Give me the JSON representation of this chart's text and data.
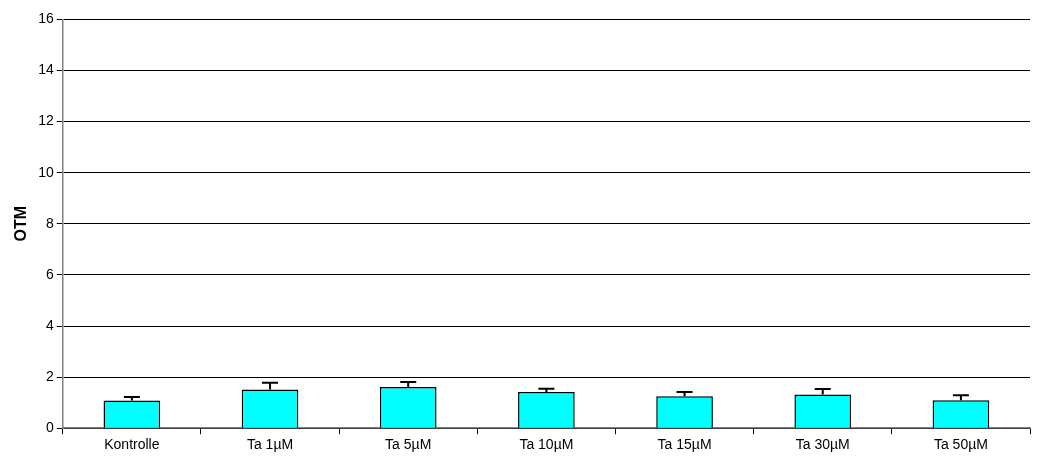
{
  "chart_data": {
    "type": "bar",
    "ylabel": "OTM",
    "categories": [
      "Kontrolle",
      "Ta 1µM",
      "Ta 5µM",
      "Ta 10µM",
      "Ta 15µM",
      "Ta 30µM",
      "Ta 50µM"
    ],
    "values": [
      1.08,
      1.51,
      1.61,
      1.42,
      1.25,
      1.32,
      1.09
    ],
    "errors": [
      [
        1.08,
        1.22
      ],
      [
        1.51,
        1.78
      ],
      [
        1.61,
        1.81
      ],
      [
        1.42,
        1.54
      ],
      [
        1.25,
        1.42
      ],
      [
        1.32,
        1.53
      ],
      [
        1.09,
        1.29
      ]
    ],
    "color": "#00ffff",
    "ylim": [
      0,
      16
    ],
    "yticks": [
      0,
      2,
      4,
      6,
      8,
      10,
      12,
      14,
      16
    ],
    "grid": "y",
    "legend": false
  }
}
